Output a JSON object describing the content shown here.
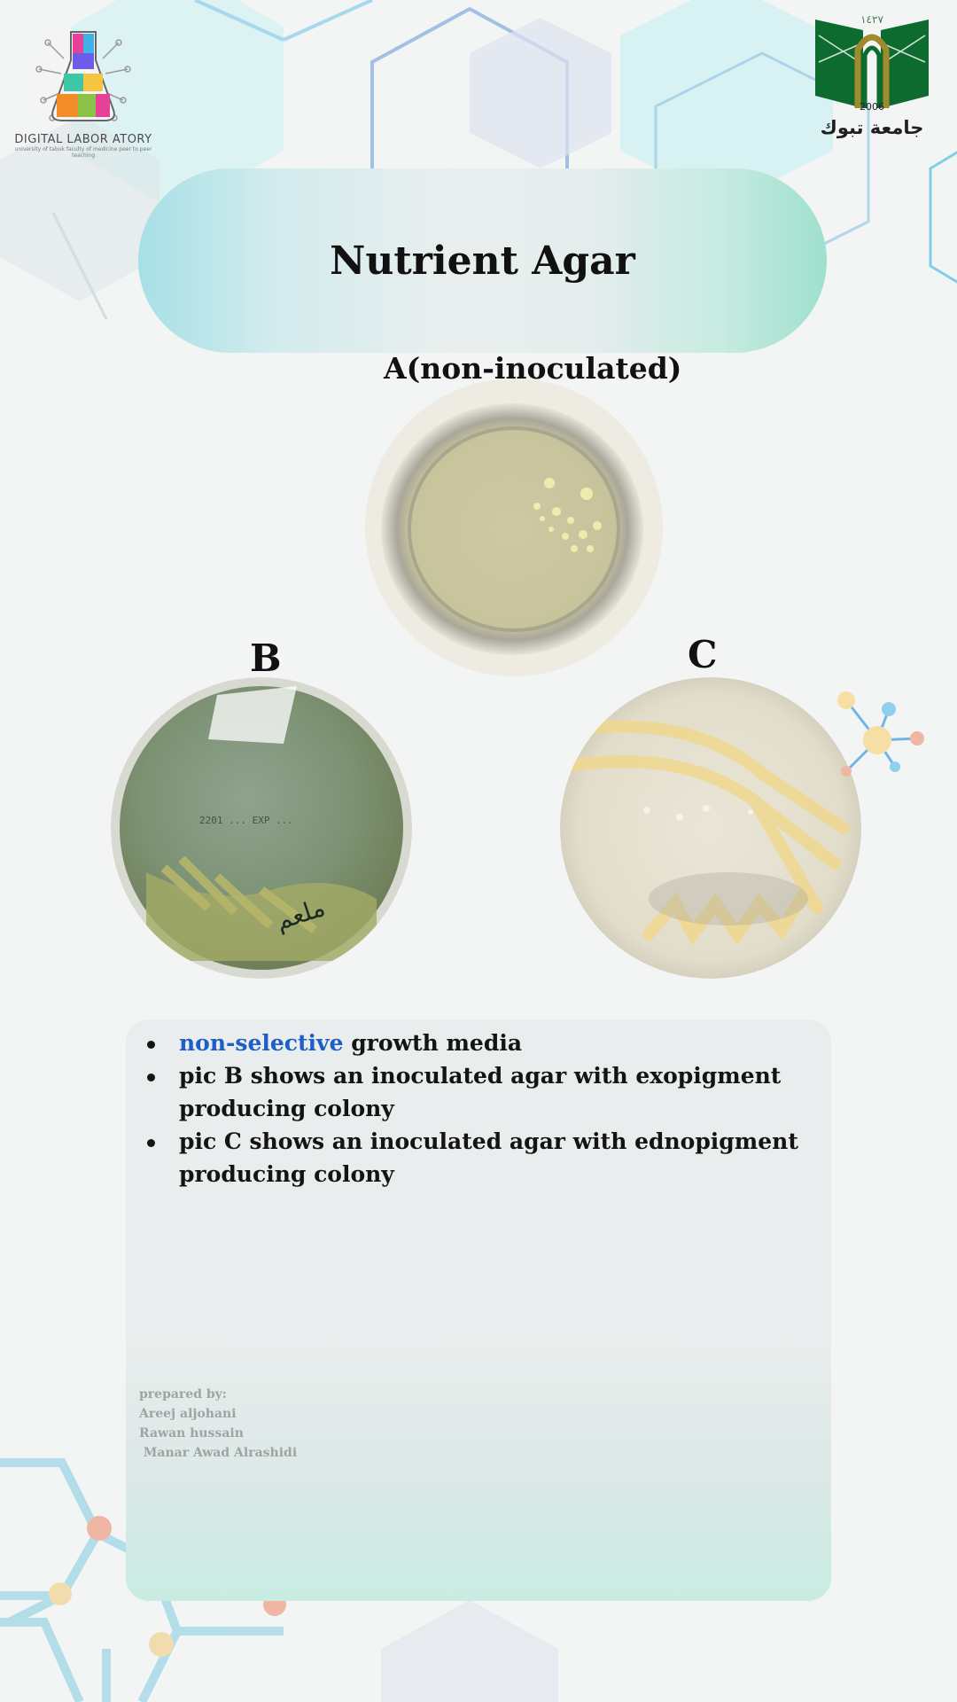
{
  "header": {
    "left_logo": {
      "name": "DIGITAL LABOR ATORY",
      "subtitle": "university of tabuk faculty of medicine peer to peer teaching"
    },
    "right_logo": {
      "year_top": "١٤٢٧",
      "year": "2006",
      "name": "جامعة تبوك"
    }
  },
  "title": "Nutrient Agar",
  "plates": {
    "a_label": "A(non-inoculated)",
    "b_label": "B",
    "c_label": "C",
    "b_plate_print": "2201 ... EXP ...",
    "b_plate_handwriting": "ملعم"
  },
  "bullets": {
    "b1_highlight": "non-selective",
    "b1_rest": " growth media",
    "b2": "pic B shows an inoculated agar with exopigment producing colony",
    "b3": "pic C shows an inoculated agar with ednopigment producing colony"
  },
  "credits": {
    "heading": "prepared by:",
    "names": [
      "Areej aljohani",
      "Rawan hussain",
      " Manar Awad Alrashidi"
    ]
  },
  "colors": {
    "highlight": "#1e5fc7",
    "pill_left": "#a6e0e6",
    "pill_right": "#9fe0cd",
    "uni_green": "#0d6b2f"
  }
}
